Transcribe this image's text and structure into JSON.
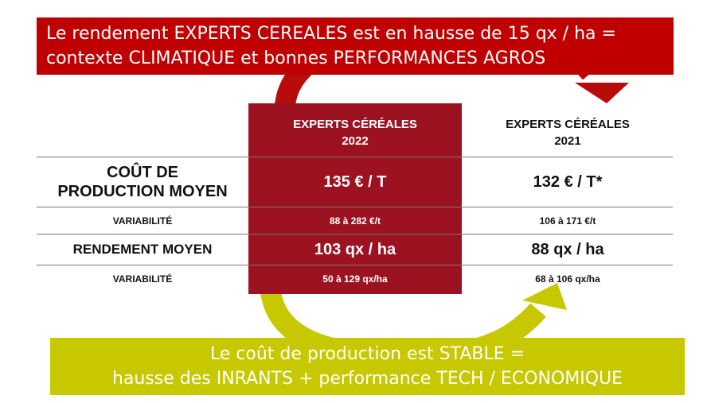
{
  "top_banner": {
    "line1": "Le rendement EXPERTS CEREALES est en hausse de 15 qx / ha =",
    "line2": "contexte CLIMATIQUE et bonnes PERFORMANCES AGROS"
  },
  "bottom_banner": {
    "line1": "Le coût de production est STABLE =",
    "line2": "hausse des INRANTS + performance TECH / ECONOMIQUE"
  },
  "table": {
    "columns": [
      {
        "line1": "EXPERTS CÉRÉALES",
        "line2": "2022"
      },
      {
        "line1": "EXPERTS CÉRÉALES",
        "line2": "2021"
      }
    ],
    "rows": [
      {
        "label_line1": "COÛT DE",
        "label_line2": "PRODUCTION MOYEN",
        "v2022": "135 € / T",
        "v2021": "132 € / T*"
      },
      {
        "label": "VARIABILITÉ",
        "v2022": "88 à 282 €/t",
        "v2021": "106 à 171 €/t"
      },
      {
        "label": "RENDEMENT MOYEN",
        "v2022": "103 qx / ha",
        "v2021": "88 qx / ha"
      },
      {
        "label": "VARIABILITÉ",
        "v2022": "50 à 129 qx/ha",
        "v2021": "68 à 106 qx/ha"
      }
    ]
  },
  "colors": {
    "top_banner": "#c00000",
    "column_2022": "#9c1220",
    "bottom_banner": "#c8c800",
    "red_arrow": "#b80c0c",
    "yellow_arrow": "#c8c800"
  }
}
